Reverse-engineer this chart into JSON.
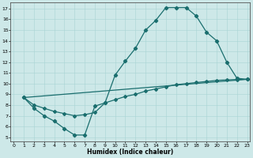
{
  "bg_color": "#cde8e8",
  "line_color": "#1a6e6e",
  "xlabel": "Humidex (Indice chaleur)",
  "xlim": [
    -0.3,
    23.3
  ],
  "ylim": [
    4.6,
    17.6
  ],
  "xticks": [
    0,
    1,
    2,
    3,
    4,
    5,
    6,
    7,
    8,
    9,
    10,
    11,
    12,
    13,
    14,
    15,
    16,
    17,
    18,
    19,
    20,
    21,
    22,
    23
  ],
  "yticks": [
    5,
    6,
    7,
    8,
    9,
    10,
    11,
    12,
    13,
    14,
    15,
    16,
    17
  ],
  "curve1_x": [
    1,
    2,
    3,
    4,
    5,
    6,
    7,
    8,
    9,
    10,
    11,
    12,
    13,
    14,
    15,
    16,
    17,
    18,
    19,
    20,
    21,
    22,
    23
  ],
  "curve1_y": [
    8.7,
    7.7,
    7.0,
    6.5,
    5.8,
    5.2,
    5.2,
    7.9,
    8.2,
    10.8,
    12.1,
    13.3,
    15.0,
    15.9,
    17.1,
    17.1,
    17.1,
    16.3,
    14.8,
    14.0,
    12.0,
    10.5,
    10.4
  ],
  "curve2_x": [
    1,
    2,
    3,
    4,
    5,
    6,
    7,
    8,
    9,
    10,
    11,
    12,
    13,
    14,
    15,
    16,
    17,
    18,
    19,
    20,
    21,
    22,
    23
  ],
  "curve2_y": [
    8.7,
    8.0,
    7.7,
    7.4,
    7.2,
    7.0,
    7.1,
    7.3,
    8.2,
    8.5,
    8.8,
    9.0,
    9.3,
    9.5,
    9.7,
    9.9,
    10.0,
    10.1,
    10.2,
    10.3,
    10.35,
    10.38,
    10.4
  ]
}
